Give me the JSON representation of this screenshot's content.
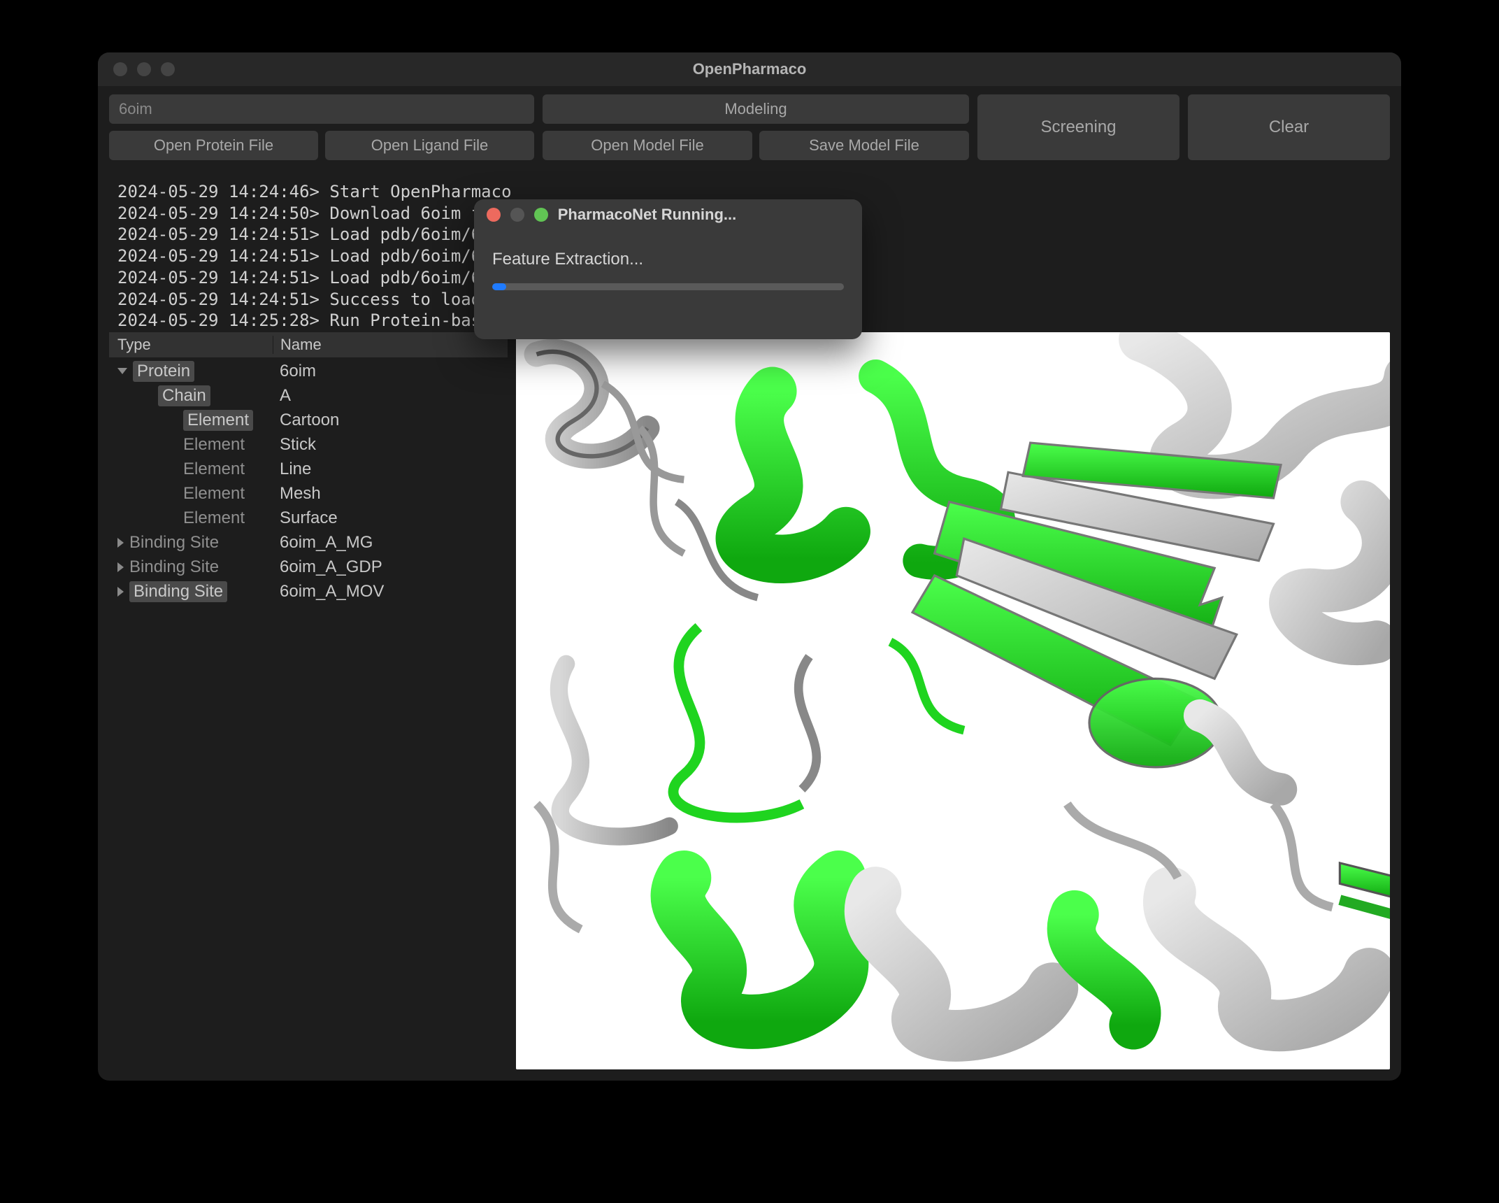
{
  "colors": {
    "window_bg": "#1d1d1d",
    "panel_bg": "#323232",
    "button_bg": "#3a3a3a",
    "text": "#c8c8c8",
    "text_dim": "#8f8f8f",
    "selection_bg": "#4a4a4a",
    "progress_track": "#5a5a5a",
    "progress_fill": "#1f7bff",
    "traffic_close": "#ed6a5e",
    "traffic_max": "#61c454",
    "viewer_bg": "#ffffff",
    "protein_green": "#1fd41f",
    "protein_gray": "#c8c8c8"
  },
  "window": {
    "title": "OpenPharmaco"
  },
  "toolbar": {
    "pdb_id_placeholder": "6oim",
    "modeling_label": "Modeling",
    "open_protein": "Open Protein File",
    "open_ligand": "Open Ligand File",
    "open_model": "Open Model File",
    "save_model": "Save Model File",
    "screening": "Screening",
    "clear": "Clear"
  },
  "log": {
    "lines": [
      "2024-05-29 14:24:46> Start OpenPharmaco",
      "2024-05-29 14:24:50> Download 6oim from R",
      "2024-05-29 14:24:51> Load pdb/6oim/6oim_",
      "2024-05-29 14:24:51> Load pdb/6oim/6oim_",
      "2024-05-29 14:24:51> Load pdb/6oim/6oim_",
      "2024-05-29 14:24:51> Success to load 6oim!",
      "2024-05-29 14:25:28> Run Protein-based Pha"
    ]
  },
  "tree": {
    "headers": {
      "type": "Type",
      "name": "Name"
    },
    "rows": [
      {
        "indent": 1,
        "disclosure": "down",
        "type": "Protein",
        "name": "6oim",
        "type_selected": true
      },
      {
        "indent": 2,
        "disclosure": "none",
        "type": "Chain",
        "name": "A",
        "type_selected": true
      },
      {
        "indent": 3,
        "disclosure": "none",
        "type": "Element",
        "name": "Cartoon",
        "type_selected": true
      },
      {
        "indent": 3,
        "disclosure": "none",
        "type": "Element",
        "name": "Stick",
        "dim": true
      },
      {
        "indent": 3,
        "disclosure": "none",
        "type": "Element",
        "name": "Line",
        "dim": true
      },
      {
        "indent": 3,
        "disclosure": "none",
        "type": "Element",
        "name": "Mesh",
        "dim": true
      },
      {
        "indent": 3,
        "disclosure": "none",
        "type": "Element",
        "name": "Surface",
        "dim": true
      },
      {
        "indent": 1,
        "disclosure": "right",
        "type": "Binding Site",
        "name": "6oim_A_MG",
        "dim": true
      },
      {
        "indent": 1,
        "disclosure": "right",
        "type": "Binding Site",
        "name": "6oim_A_GDP",
        "dim": true
      },
      {
        "indent": 1,
        "disclosure": "right",
        "type": "Binding Site",
        "name": "6oim_A_MOV",
        "type_selected": true
      }
    ]
  },
  "dialog": {
    "title": "PharmacoNet Running...",
    "status": "Feature Extraction...",
    "progress_pct": 4
  }
}
